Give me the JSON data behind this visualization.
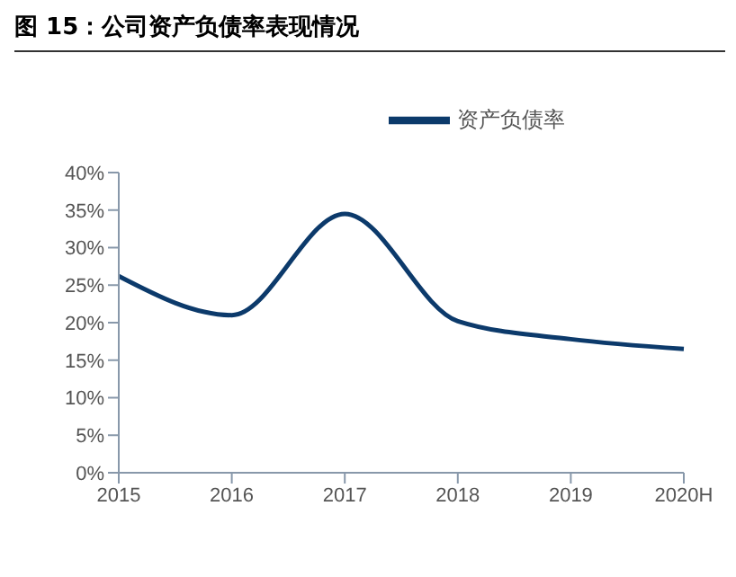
{
  "chart_data": {
    "type": "line",
    "title": "图 15：公司资产负债率表现情况",
    "categories": [
      "2015",
      "2016",
      "2017",
      "2018",
      "2019",
      "2020H"
    ],
    "series": [
      {
        "name": "资产负债率",
        "color": "#0c3a6b",
        "values": [
          26.2,
          21,
          34.5,
          20.2,
          17.8,
          16.5
        ]
      }
    ],
    "ylim": [
      0,
      40
    ],
    "yticks": [
      {
        "value": 0,
        "label": "0%"
      },
      {
        "value": 5,
        "label": "5%"
      },
      {
        "value": 10,
        "label": "10%"
      },
      {
        "value": 15,
        "label": "15%"
      },
      {
        "value": 20,
        "label": "20%"
      },
      {
        "value": 25,
        "label": "25%"
      },
      {
        "value": 30,
        "label": "30%"
      },
      {
        "value": 35,
        "label": "35%"
      },
      {
        "value": 40,
        "label": "40%"
      }
    ],
    "grid": false,
    "legend": "top",
    "marker": "none",
    "line_style": "solid"
  }
}
